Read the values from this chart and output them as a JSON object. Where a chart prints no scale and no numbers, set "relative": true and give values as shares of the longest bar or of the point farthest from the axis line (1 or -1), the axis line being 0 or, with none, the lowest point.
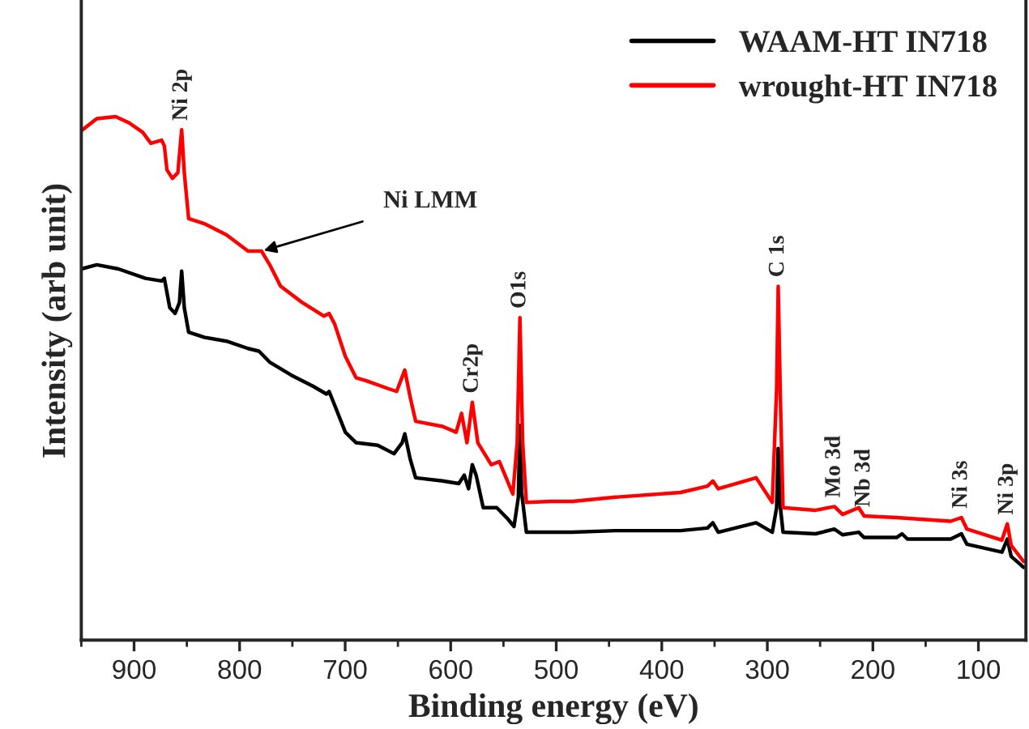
{
  "chart_data": {
    "type": "line",
    "relative": true,
    "xlabel": "Binding energy (eV)",
    "ylabel": "Intensity (arb unit)",
    "xlim": [
      950,
      55
    ],
    "xticks": [
      900,
      800,
      700,
      600,
      500,
      400,
      300,
      200,
      100
    ],
    "legend": "top right",
    "grid": false,
    "series": [
      {
        "name": "WAAM-HT IN718",
        "color": "#000000",
        "x": [
          950,
          935.3,
          914.9,
          889.2,
          873.9,
          871.3,
          866.2,
          861.1,
          857.0,
          854.9,
          852.4,
          848.3,
          832.9,
          812.4,
          792.0,
          781.7,
          771.5,
          751.0,
          730.5,
          717.7,
          715.2,
          710.0,
          699.8,
          689.6,
          669.1,
          653.7,
          646.0,
          643.5,
          638.4,
          633.2,
          607.6,
          592.3,
          587.2,
          583.1,
          579.5,
          575.9,
          569.2,
          556.4,
          546.2,
          540.0,
          535.9,
          534.4,
          532.9,
          528.3,
          484.8,
          443.8,
          382.3,
          356.7,
          351.6,
          346.5,
          310.6,
          295.3,
          291.2,
          289.7,
          287.6,
          285.1,
          254.3,
          236.4,
          228.7,
          213.4,
          208.3,
          177.5,
          172.4,
          167.3,
          126.3,
          116.1,
          110.9,
          77.7,
          72.6,
          69.0,
          57.2
        ],
        "values": [
          0.709,
          0.717,
          0.709,
          0.691,
          0.686,
          0.691,
          0.635,
          0.624,
          0.645,
          0.705,
          0.635,
          0.588,
          0.578,
          0.571,
          0.557,
          0.552,
          0.531,
          0.506,
          0.485,
          0.47,
          0.475,
          0.449,
          0.397,
          0.377,
          0.372,
          0.356,
          0.377,
          0.394,
          0.346,
          0.31,
          0.304,
          0.299,
          0.315,
          0.289,
          0.335,
          0.315,
          0.253,
          0.253,
          0.232,
          0.217,
          0.273,
          0.41,
          0.284,
          0.206,
          0.206,
          0.209,
          0.209,
          0.214,
          0.224,
          0.206,
          0.224,
          0.206,
          0.253,
          0.366,
          0.253,
          0.206,
          0.203,
          0.212,
          0.201,
          0.206,
          0.196,
          0.196,
          0.203,
          0.193,
          0.193,
          0.203,
          0.183,
          0.168,
          0.193,
          0.16,
          0.139
        ]
      },
      {
        "name": "wrought-HT IN718",
        "color": "#ff0000",
        "x": [
          950,
          935.3,
          917.4,
          904.6,
          891.8,
          884.1,
          873.9,
          871.3,
          868.8,
          863.6,
          858.5,
          854.9,
          852.4,
          848.3,
          832.9,
          812.4,
          792.0,
          779.2,
          771.5,
          761.2,
          740.8,
          720.3,
          715.2,
          710.0,
          699.8,
          689.6,
          679.3,
          658.8,
          651.2,
          643.5,
          638.4,
          633.2,
          607.6,
          594.8,
          589.7,
          584.6,
          579.5,
          574.3,
          561.6,
          553.9,
          541.1,
          537.0,
          534.4,
          531.8,
          528.3,
          505.2,
          484.8,
          443.8,
          382.3,
          356.7,
          351.6,
          346.5,
          310.6,
          295.3,
          291.2,
          289.7,
          287.6,
          285.1,
          254.3,
          236.4,
          228.7,
          213.4,
          208.3,
          177.5,
          126.3,
          116.1,
          110.9,
          77.7,
          72.6,
          69.0,
          57.2
        ],
        "values": [
          0.973,
          0.996,
          1.0,
          0.988,
          0.97,
          0.949,
          0.955,
          0.944,
          0.898,
          0.882,
          0.893,
          0.975,
          0.893,
          0.805,
          0.795,
          0.774,
          0.743,
          0.743,
          0.717,
          0.676,
          0.645,
          0.619,
          0.624,
          0.604,
          0.542,
          0.501,
          0.495,
          0.48,
          0.475,
          0.516,
          0.464,
          0.418,
          0.408,
          0.397,
          0.433,
          0.377,
          0.454,
          0.377,
          0.335,
          0.341,
          0.279,
          0.377,
          0.616,
          0.377,
          0.263,
          0.265,
          0.265,
          0.273,
          0.282,
          0.294,
          0.304,
          0.289,
          0.31,
          0.263,
          0.48,
          0.676,
          0.459,
          0.253,
          0.248,
          0.255,
          0.24,
          0.253,
          0.237,
          0.234,
          0.227,
          0.234,
          0.212,
          0.191,
          0.222,
          0.181,
          0.15
        ]
      }
    ],
    "annotations": [
      {
        "text": "Ni 2p",
        "x": 854.9,
        "y": 0.975
      },
      {
        "text": "O1s",
        "x": 534.4,
        "y": 0.616
      },
      {
        "text": "Cr2p",
        "x": 579.5,
        "y": 0.454
      },
      {
        "text": "C 1s",
        "x": 289.7,
        "y": 0.676
      },
      {
        "text": "Mo 3d",
        "x": 236.4,
        "y": 0.255
      },
      {
        "text": "Nb 3d",
        "x": 208.3,
        "y": 0.237
      },
      {
        "text": "Ni 3s",
        "x": 116.1,
        "y": 0.234
      },
      {
        "text": "Ni 3p",
        "x": 72.6,
        "y": 0.222
      },
      {
        "text": "Ni LMM",
        "x": 779.2,
        "y": 0.743
      }
    ]
  }
}
